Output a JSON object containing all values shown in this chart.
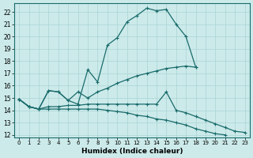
{
  "xlabel": "Humidex (Indice chaleur)",
  "background_color": "#cceaea",
  "grid_color": "#aad4d4",
  "line_color": "#1a6b6b",
  "xlim": [
    -0.5,
    23.5
  ],
  "ylim": [
    11.8,
    22.7
  ],
  "yticks": [
    12,
    13,
    14,
    15,
    16,
    17,
    18,
    19,
    20,
    21,
    22
  ],
  "xticks": [
    0,
    1,
    2,
    3,
    4,
    5,
    6,
    7,
    8,
    9,
    10,
    11,
    12,
    13,
    14,
    15,
    16,
    17,
    18,
    19,
    20,
    21,
    22,
    23
  ],
  "series": [
    {
      "x": [
        0,
        1,
        2,
        3,
        4,
        5,
        6,
        7,
        8,
        9,
        10,
        11,
        12,
        13,
        14,
        15,
        16,
        17,
        18
      ],
      "y": [
        14.9,
        14.3,
        14.1,
        15.6,
        15.5,
        14.8,
        14.5,
        17.3,
        16.3,
        19.3,
        19.9,
        21.2,
        21.7,
        22.3,
        22.1,
        22.2,
        21.0,
        20.0,
        17.5
      ]
    },
    {
      "x": [
        0,
        1,
        2,
        3,
        4,
        5,
        6,
        7,
        8,
        9,
        10,
        11,
        12,
        13,
        14,
        15,
        16,
        17,
        18
      ],
      "y": [
        14.9,
        14.3,
        14.1,
        15.6,
        15.5,
        14.8,
        15.5,
        15.0,
        15.5,
        15.8,
        16.2,
        16.5,
        16.8,
        17.0,
        17.2,
        17.4,
        17.5,
        17.6,
        17.5
      ]
    },
    {
      "x": [
        0,
        1,
        2,
        3,
        4,
        5,
        6,
        7,
        8,
        9,
        10,
        11,
        12,
        13,
        14,
        15,
        16,
        17,
        18,
        19,
        20,
        21,
        22,
        23
      ],
      "y": [
        14.9,
        14.3,
        14.1,
        14.3,
        14.3,
        14.4,
        14.4,
        14.5,
        14.5,
        14.5,
        14.5,
        14.5,
        14.5,
        14.5,
        14.5,
        15.5,
        14.0,
        13.8,
        13.5,
        13.2,
        12.9,
        12.6,
        12.3,
        12.2
      ]
    },
    {
      "x": [
        0,
        1,
        2,
        3,
        4,
        5,
        6,
        7,
        8,
        9,
        10,
        11,
        12,
        13,
        14,
        15,
        16,
        17,
        18,
        19,
        20,
        21,
        22,
        23
      ],
      "y": [
        14.9,
        14.3,
        14.1,
        14.1,
        14.1,
        14.1,
        14.1,
        14.1,
        14.1,
        14.0,
        13.9,
        13.8,
        13.6,
        13.5,
        13.3,
        13.2,
        13.0,
        12.8,
        12.5,
        12.3,
        12.1,
        12.0,
        null,
        null
      ]
    }
  ]
}
